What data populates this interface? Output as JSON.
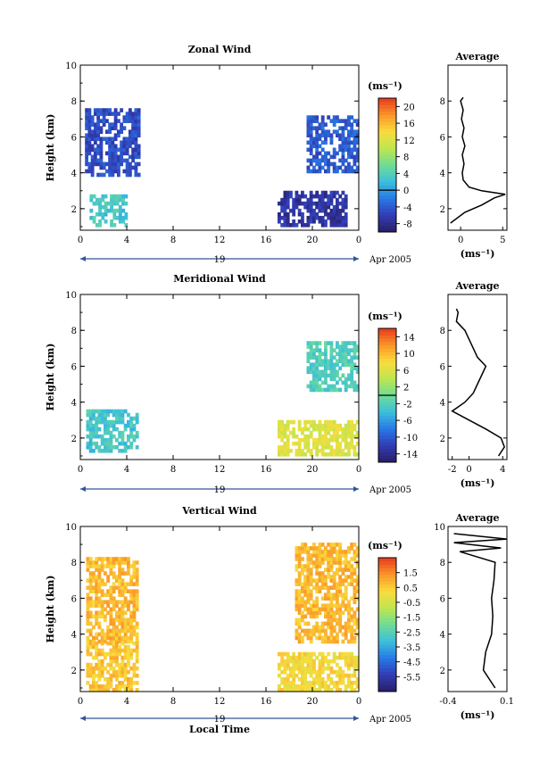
{
  "chart_data": [
    {
      "type": "heatmap",
      "title": "Zonal Wind",
      "ylabel": "Height (km)",
      "xlabel": "",
      "xlim": [
        0,
        24
      ],
      "ylim": [
        0.8,
        10
      ],
      "x_ticks": [
        "0",
        "4",
        "8",
        "12",
        "16",
        "20",
        "0"
      ],
      "y_ticks": [
        "2",
        "4",
        "6",
        "8",
        "10"
      ],
      "date_day": "19",
      "date_label": "Apr 2005",
      "colorbar": {
        "unit": "(ms⁻¹)",
        "ticks": [
          "20",
          "16",
          "12",
          "8",
          "4",
          "0",
          "-4",
          "-8"
        ],
        "range": [
          -10,
          22
        ],
        "zero_line": 0
      },
      "regions": [
        {
          "x": [
            0.4,
            5.0
          ],
          "y": [
            3.8,
            7.6
          ],
          "value": -5
        },
        {
          "x": [
            0.8,
            4.0
          ],
          "y": [
            1.0,
            2.8
          ],
          "value": 3
        },
        {
          "x": [
            17.0,
            23.0
          ],
          "y": [
            1.0,
            3.0
          ],
          "value": -7
        },
        {
          "x": [
            19.5,
            24.0
          ],
          "y": [
            4.0,
            7.2
          ],
          "value": -4
        }
      ],
      "average_profile": {
        "title": "Average",
        "xlabel": "(ms⁻¹)",
        "xlim": [
          -1.5,
          5.5
        ],
        "x_ticks": [
          "0",
          "5"
        ],
        "y_ticks": [
          "2",
          "4",
          "6",
          "8"
        ],
        "height": [
          1.2,
          1.8,
          2.2,
          2.6,
          2.8,
          3.0,
          3.2,
          3.6,
          4.0,
          4.5,
          5.0,
          5.5,
          6.0,
          6.5,
          7.0,
          7.5,
          8.0,
          8.2
        ],
        "value": [
          -1.2,
          0.5,
          2.5,
          4.0,
          5.3,
          2.5,
          1.0,
          0.3,
          0.2,
          0.4,
          0.2,
          0.5,
          0.2,
          0.4,
          0.1,
          0.3,
          0.0,
          0.3
        ]
      }
    },
    {
      "type": "heatmap",
      "title": "Meridional Wind",
      "ylabel": "Height (km)",
      "xlabel": "",
      "xlim": [
        0,
        24
      ],
      "ylim": [
        0.8,
        10
      ],
      "x_ticks": [
        "0",
        "4",
        "8",
        "12",
        "16",
        "20",
        "0"
      ],
      "y_ticks": [
        "2",
        "4",
        "6",
        "8",
        "10"
      ],
      "date_day": "19",
      "date_label": "Apr 2005",
      "colorbar": {
        "unit": "(ms⁻¹)",
        "ticks": [
          "14",
          "10",
          "6",
          "2",
          "-2",
          "-6",
          "-10",
          "-14"
        ],
        "range": [
          -16,
          16
        ],
        "zero_line": 0
      },
      "regions": [
        {
          "x": [
            0.5,
            5.0
          ],
          "y": [
            1.2,
            3.5
          ],
          "value": -3
        },
        {
          "x": [
            17.0,
            24.0
          ],
          "y": [
            1.0,
            3.0
          ],
          "value": 6
        },
        {
          "x": [
            19.5,
            24.0
          ],
          "y": [
            4.6,
            7.4
          ],
          "value": -2
        }
      ],
      "average_profile": {
        "title": "Average",
        "xlabel": "(ms⁻¹)",
        "xlim": [
          -2.5,
          4.5
        ],
        "x_ticks": [
          "-2",
          "0",
          "4"
        ],
        "y_ticks": [
          "2",
          "4",
          "6",
          "8"
        ],
        "height": [
          1.0,
          1.5,
          2.0,
          2.5,
          3.0,
          3.5,
          4.0,
          4.5,
          5.0,
          5.5,
          6.0,
          6.5,
          7.0,
          7.5,
          8.0,
          8.5,
          9.0,
          9.2
        ],
        "value": [
          3.5,
          4.2,
          3.8,
          2.0,
          0.0,
          -2.0,
          -0.5,
          0.5,
          1.0,
          1.5,
          2.0,
          1.0,
          0.5,
          0.0,
          -0.5,
          -1.5,
          -1.3,
          -1.5
        ]
      }
    },
    {
      "type": "heatmap",
      "title": "Vertical Wind",
      "ylabel": "Height (km)",
      "xlabel": "Local Time",
      "xlim": [
        0,
        24
      ],
      "ylim": [
        0.8,
        10
      ],
      "x_ticks": [
        "0",
        "4",
        "8",
        "12",
        "16",
        "20",
        "0"
      ],
      "y_ticks": [
        "2",
        "4",
        "6",
        "8",
        "10"
      ],
      "date_day": "19",
      "date_label": "Apr 2005",
      "colorbar": {
        "unit": "(ms⁻¹)",
        "ticks": [
          "1.5",
          "0.5",
          "-0.5",
          "-1.5",
          "-2.5",
          "-3.5",
          "-4.5",
          "-5.5"
        ],
        "range": [
          -6.5,
          2.5
        ]
      },
      "regions": [
        {
          "x": [
            0.5,
            5.0
          ],
          "y": [
            3.5,
            8.2
          ],
          "value": 0.8
        },
        {
          "x": [
            0.5,
            5.0
          ],
          "y": [
            0.8,
            3.5
          ],
          "value": 0.6
        },
        {
          "x": [
            17.0,
            24.0
          ],
          "y": [
            0.8,
            3.0
          ],
          "value": 0.2
        },
        {
          "x": [
            18.5,
            24.0
          ],
          "y": [
            3.5,
            9.0
          ],
          "value": 0.8
        }
      ],
      "average_profile": {
        "title": "Average",
        "xlabel": "(ms⁻¹)",
        "xlim": [
          -0.4,
          0.1
        ],
        "x_ticks": [
          "-0.4",
          "0.1"
        ],
        "y_ticks": [
          "2",
          "4",
          "6",
          "8",
          "10"
        ],
        "height": [
          1.0,
          2.0,
          3.0,
          4.0,
          5.0,
          6.0,
          7.0,
          8.0,
          8.6,
          8.8,
          9.1,
          9.3,
          9.6
        ],
        "value": [
          0.0,
          -0.1,
          -0.08,
          -0.03,
          -0.02,
          -0.03,
          -0.01,
          0.0,
          -0.3,
          0.05,
          -0.35,
          0.1,
          -0.35
        ]
      }
    }
  ]
}
